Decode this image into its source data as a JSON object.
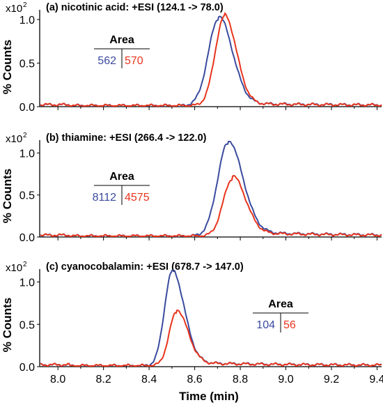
{
  "figure": {
    "xlabel": "Time (min)",
    "ylabel": "% Counts",
    "scale_label": "x10",
    "scale_exp": "2",
    "area_header": "Area",
    "colors": {
      "series_a": "#3a4a9e",
      "series_b": "#e8341c",
      "axis": "#000000",
      "text": "#000000"
    }
  },
  "chart_data": [
    {
      "type": "line",
      "title": "(a) nicotinic acid: +ESI (124.1 -> 78.0)",
      "xlim": [
        7.92,
        9.42
      ],
      "ylim": [
        0,
        1.08
      ],
      "xticks": [],
      "yticks": [
        "0.0",
        "0.5",
        "1.0"
      ],
      "area_values": [
        "562",
        "570"
      ],
      "series": [
        {
          "color": "#3a4a9e",
          "peak_time": 8.705,
          "height": 1.0,
          "width": 0.045,
          "tail": 0.06,
          "baseline": 0.03
        },
        {
          "color": "#e8341c",
          "peak_time": 8.73,
          "height": 1.02,
          "width": 0.04,
          "tail": 0.05,
          "baseline": 0.025
        }
      ]
    },
    {
      "type": "line",
      "title": "(b) thiamine: +ESI (266.4 -> 122.0)",
      "xlim": [
        7.92,
        9.42
      ],
      "ylim": [
        0,
        1.12
      ],
      "xticks": [],
      "yticks": [
        "0.0",
        "0.5",
        "1.0"
      ],
      "area_values": [
        "8112",
        "4575"
      ],
      "series": [
        {
          "color": "#3a4a9e",
          "peak_time": 8.745,
          "height": 1.1,
          "width": 0.045,
          "tail": 0.08,
          "baseline": 0.05
        },
        {
          "color": "#e8341c",
          "peak_time": 8.765,
          "height": 0.68,
          "width": 0.04,
          "tail": 0.07,
          "baseline": 0.04
        }
      ]
    },
    {
      "type": "line",
      "title": "(c) cyanocobalamin: +ESI (678.7 -> 147.0)",
      "xlim": [
        7.92,
        9.42
      ],
      "ylim": [
        0,
        1.12
      ],
      "xticks": [
        "8.0",
        "8.2",
        "8.4",
        "8.6",
        "8.8",
        "9.0",
        "9.2",
        "9.4"
      ],
      "yticks": [
        "0.0",
        "0.5",
        "1.0"
      ],
      "area_values": [
        "104",
        "56"
      ],
      "series": [
        {
          "color": "#3a4a9e",
          "peak_time": 8.5,
          "height": 1.1,
          "width": 0.033,
          "tail": 0.08,
          "baseline": 0.04
        },
        {
          "color": "#e8341c",
          "peak_time": 8.52,
          "height": 0.63,
          "width": 0.032,
          "tail": 0.07,
          "baseline": 0.035
        }
      ]
    }
  ]
}
